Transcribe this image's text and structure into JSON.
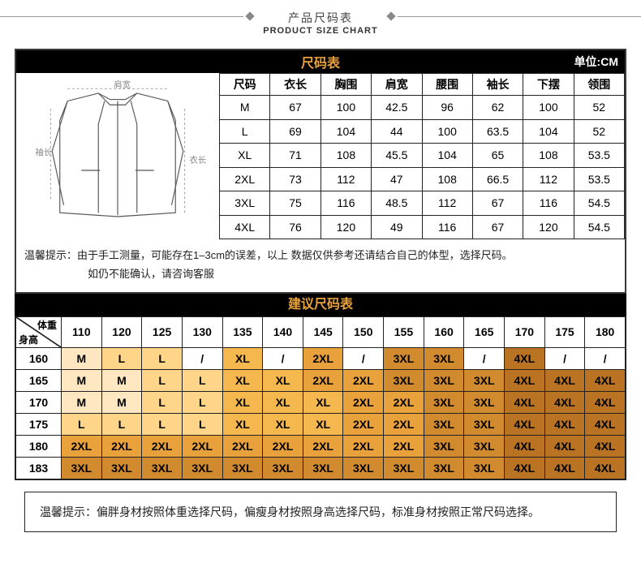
{
  "header": {
    "cn": "产品尺码表",
    "en": "PRODUCT SIZE CHART"
  },
  "title1": "尺码表",
  "unit": "单位:CM",
  "illus_labels": {
    "shoulder": "肩宽",
    "sleeve": "袖长",
    "length": "衣长"
  },
  "size_table": {
    "columns": [
      "尺码",
      "衣长",
      "胸围",
      "肩宽",
      "腰围",
      "袖长",
      "下摆",
      "领围"
    ],
    "rows": [
      [
        "M",
        "67",
        "100",
        "42.5",
        "96",
        "62",
        "100",
        "52"
      ],
      [
        "L",
        "69",
        "104",
        "44",
        "100",
        "63.5",
        "104",
        "52"
      ],
      [
        "XL",
        "71",
        "108",
        "45.5",
        "104",
        "65",
        "108",
        "53.5"
      ],
      [
        "2XL",
        "73",
        "112",
        "47",
        "108",
        "66.5",
        "112",
        "53.5"
      ],
      [
        "3XL",
        "75",
        "116",
        "48.5",
        "112",
        "67",
        "116",
        "54.5"
      ],
      [
        "4XL",
        "76",
        "120",
        "49",
        "116",
        "67",
        "120",
        "54.5"
      ]
    ]
  },
  "tip1_a": "温馨提示：由于手工测量，可能存在1–3cm的误差，以上 数据仅供参考还请结合自己的体型，选择尺码。",
  "tip1_b": "如仍不能确认，请咨询客服",
  "title2": "建议尺码表",
  "rec": {
    "corner_w": "体重",
    "corner_h": "身高",
    "weights": [
      "110",
      "120",
      "125",
      "130",
      "135",
      "140",
      "145",
      "150",
      "155",
      "160",
      "165",
      "170",
      "175",
      "180"
    ],
    "heights": [
      "160",
      "165",
      "170",
      "175",
      "180",
      "183"
    ],
    "grid": [
      [
        "M",
        "L",
        "L",
        "/",
        "XL",
        "/",
        "2XL",
        "/",
        "3XL",
        "3XL",
        "/",
        "4XL",
        "/",
        "/"
      ],
      [
        "M",
        "M",
        "L",
        "L",
        "XL",
        "XL",
        "2XL",
        "2XL",
        "3XL",
        "3XL",
        "3XL",
        "4XL",
        "4XL",
        "4XL"
      ],
      [
        "M",
        "M",
        "L",
        "L",
        "XL",
        "XL",
        "XL",
        "2XL",
        "2XL",
        "3XL",
        "3XL",
        "4XL",
        "4XL",
        "4XL"
      ],
      [
        "L",
        "L",
        "L",
        "L",
        "XL",
        "XL",
        "XL",
        "2XL",
        "2XL",
        "3XL",
        "3XL",
        "4XL",
        "4XL",
        "4XL"
      ],
      [
        "2XL",
        "2XL",
        "2XL",
        "2XL",
        "2XL",
        "2XL",
        "2XL",
        "2XL",
        "2XL",
        "3XL",
        "3XL",
        "4XL",
        "4XL",
        "4XL"
      ],
      [
        "3XL",
        "3XL",
        "3XL",
        "3XL",
        "3XL",
        "3XL",
        "3XL",
        "3XL",
        "3XL",
        "3XL",
        "3XL",
        "4XL",
        "4XL",
        "4XL"
      ]
    ],
    "colors": {
      "M": "#ffe7c2",
      "L": "#ffd58a",
      "XL": "#f5b84e",
      "2XL": "#e9a13c",
      "3XL": "#d18a2e",
      "4XL": "#b97322",
      "/": "#ffffff"
    }
  },
  "tip2": "温馨提示：偏胖身材按照体重选择尺码，偏瘦身材按照身高选择尺码，标准身材按照正常尺码选择。"
}
